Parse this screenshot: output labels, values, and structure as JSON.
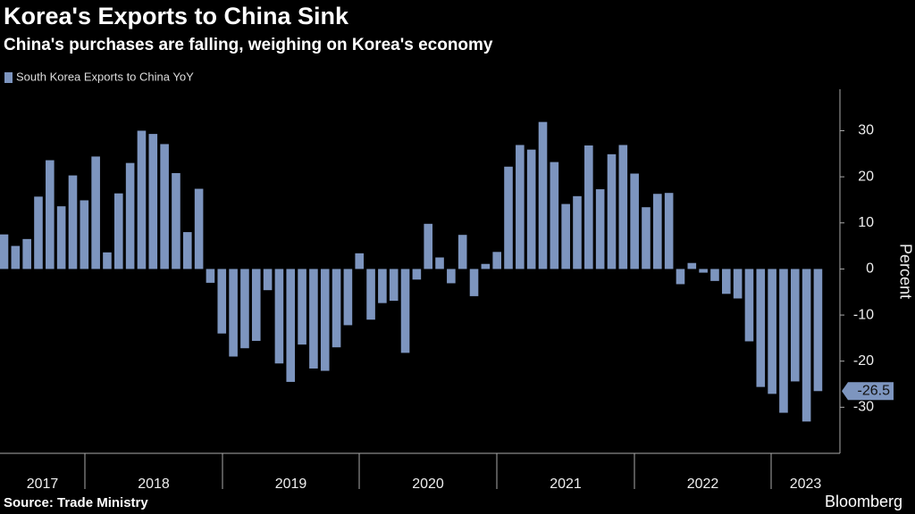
{
  "chart_data": {
    "type": "bar",
    "title": "Korea's Exports to China Sink",
    "subtitle": "China's purchases are falling, weighing on Korea's economy",
    "series": [
      {
        "name": "South Korea Exports to China YoY",
        "color": "#7d95bf",
        "values": [
          7.5,
          5,
          6.5,
          15.7,
          23.6,
          13.6,
          20.3,
          14.9,
          24.4,
          3.6,
          16.4,
          23,
          30,
          29.3,
          27.1,
          20.8,
          8,
          17.4,
          -3,
          -14,
          -19,
          -17.2,
          -15.6,
          -4.6,
          -20.5,
          -24.5,
          -16.4,
          -21.6,
          -22.1,
          -17,
          -12.2,
          3.4,
          -11,
          -7.4,
          -6.9,
          -18.2,
          -2.3,
          9.8,
          2.5,
          -3.1,
          7.4,
          -5.9,
          1.1,
          3.7,
          22.2,
          26.9,
          25.9,
          31.9,
          23.2,
          14.1,
          15.8,
          26.8,
          17.3,
          24.9,
          26.9,
          20.7,
          13.4,
          16.3,
          16.5,
          -3.3,
          1.3,
          -0.8,
          -2.6,
          -5.4,
          -6.4,
          -15.7,
          -25.6,
          -27.1,
          -31.2,
          -24.4,
          -33.1,
          -26.5
        ]
      }
    ],
    "x_labels": [
      "2017",
      "2018",
      "2019",
      "2020",
      "2021",
      "2022",
      "2023"
    ],
    "ylabel": "Percent",
    "ylim": [
      -40,
      39
    ],
    "yticks": [
      -30,
      -20,
      -10,
      0,
      10,
      20,
      30
    ],
    "source": "Source: Trade Ministry",
    "brand": "Bloomberg"
  }
}
